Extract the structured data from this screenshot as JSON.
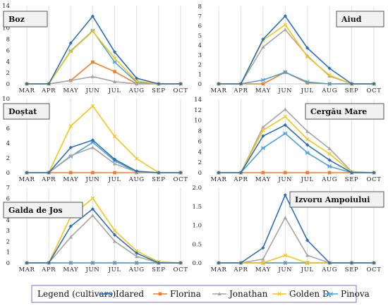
{
  "legend": {
    "title": "Legend (cultivars):",
    "items": [
      {
        "name": "Idared",
        "color": "#2e6fb5"
      },
      {
        "name": "Florina",
        "color": "#f07f2a"
      },
      {
        "name": "Jonathan",
        "color": "#a5a5a5"
      },
      {
        "name": "Golden D.",
        "color": "#f5c518"
      },
      {
        "name": "Pinova",
        "color": "#4aa3d6"
      }
    ]
  },
  "chart_data": [
    {
      "type": "line",
      "title": "Boz",
      "categories": [
        "MAR",
        "APR",
        "MAY",
        "JUN",
        "JUL",
        "AUG",
        "SEP",
        "OCT"
      ],
      "ylim": [
        0,
        14
      ],
      "yticks": [
        0,
        2,
        4,
        6,
        8,
        10,
        12,
        14
      ],
      "ytick_labels": [
        "0",
        "2",
        "4",
        "6",
        "8",
        "10",
        "12",
        "14"
      ],
      "series": [
        {
          "name": "Idared",
          "values": [
            0,
            0,
            7.3,
            12.1,
            5.7,
            1.0,
            0,
            0
          ]
        },
        {
          "name": "Florina",
          "values": [
            0,
            0,
            0.6,
            3.9,
            2.2,
            0,
            0,
            0
          ]
        },
        {
          "name": "Jonathan",
          "values": [
            0,
            0,
            0.6,
            1.3,
            0.4,
            0,
            0,
            0
          ]
        },
        {
          "name": "Golden D.",
          "values": [
            0,
            0,
            5.8,
            9.4,
            4.6,
            0.5,
            0,
            0
          ]
        },
        {
          "name": "Pinova",
          "values": [
            0,
            0,
            5.9,
            9.5,
            3.9,
            0.3,
            0,
            0
          ]
        }
      ]
    },
    {
      "type": "line",
      "title": "Aiud",
      "categories": [
        "MAR",
        "APR",
        "MAY",
        "JUN",
        "JUL",
        "AUG",
        "SEP",
        "OCT"
      ],
      "ylim": [
        0,
        8
      ],
      "yticks": [
        0,
        1,
        2,
        3,
        4,
        5,
        6,
        7,
        8
      ],
      "ytick_labels": [
        "0",
        "1",
        "2",
        "3",
        "4",
        "5",
        "6",
        "7",
        "8"
      ],
      "series": [
        {
          "name": "Idared",
          "values": [
            0,
            0,
            4.6,
            7.0,
            3.7,
            1.6,
            0,
            0
          ]
        },
        {
          "name": "Florina",
          "values": [
            0,
            0,
            0,
            1.2,
            0.1,
            0,
            0,
            0
          ]
        },
        {
          "name": "Jonathan",
          "values": [
            0,
            0,
            3.8,
            5.6,
            2.9,
            0.8,
            0,
            0
          ]
        },
        {
          "name": "Golden D.",
          "values": [
            0,
            0,
            4.5,
            6.1,
            2.8,
            0.9,
            0,
            0
          ]
        },
        {
          "name": "Pinova",
          "values": [
            0,
            0,
            0.4,
            1.2,
            0.2,
            0,
            0,
            0
          ]
        }
      ]
    },
    {
      "type": "line",
      "title": "Doștat",
      "categories": [
        "MAR",
        "APR",
        "MAY",
        "JUN",
        "JUL",
        "AUG",
        "SEP",
        "OCT"
      ],
      "ylim": [
        0,
        10
      ],
      "yticks": [
        0,
        2,
        4,
        6,
        8,
        10
      ],
      "ytick_labels": [
        "0",
        "2",
        "4",
        "6",
        "8",
        "10"
      ],
      "series": [
        {
          "name": "Idared",
          "values": [
            0,
            0,
            3.4,
            4.4,
            1.8,
            0.2,
            0,
            0
          ]
        },
        {
          "name": "Florina",
          "values": [
            0,
            0,
            0,
            0,
            0,
            0,
            0,
            0
          ]
        },
        {
          "name": "Jonathan",
          "values": [
            0,
            0,
            2.3,
            3.4,
            1.2,
            0.1,
            0,
            0
          ]
        },
        {
          "name": "Golden D.",
          "values": [
            0,
            0,
            6.3,
            9.0,
            4.9,
            1.9,
            0,
            0
          ]
        },
        {
          "name": "Pinova",
          "values": [
            0,
            0,
            2.2,
            4.1,
            1.6,
            0.1,
            0,
            0
          ]
        }
      ]
    },
    {
      "type": "line",
      "title": "Cergău Mare",
      "categories": [
        "MAR",
        "APR",
        "MAY",
        "JUN",
        "JUL",
        "AUG",
        "SEP",
        "OCT"
      ],
      "ylim": [
        0,
        14
      ],
      "yticks": [
        0,
        2,
        4,
        6,
        8,
        10,
        12,
        14
      ],
      "ytick_labels": [
        "0",
        "2",
        "4",
        "6",
        "8",
        "10",
        "12",
        "14"
      ],
      "series": [
        {
          "name": "Idared",
          "values": [
            0,
            0,
            7.0,
            9.1,
            5.3,
            2.4,
            0,
            0
          ]
        },
        {
          "name": "Florina",
          "values": [
            0,
            0,
            0,
            0,
            0,
            0,
            0,
            0
          ]
        },
        {
          "name": "Jonathan",
          "values": [
            0,
            0,
            8.7,
            12.1,
            7.9,
            4.6,
            0.2,
            0
          ]
        },
        {
          "name": "Golden D.",
          "values": [
            0,
            0,
            8.1,
            10.7,
            6.4,
            3.6,
            0.1,
            0
          ]
        },
        {
          "name": "Pinova",
          "values": [
            0,
            0,
            4.7,
            7.5,
            3.8,
            1.2,
            0,
            0
          ]
        }
      ]
    },
    {
      "type": "line",
      "title": "Galda de Jos",
      "categories": [
        "MAR",
        "APR",
        "MAY",
        "JUN",
        "JUL",
        "AUG",
        "SEP",
        "OCT"
      ],
      "ylim": [
        0,
        7
      ],
      "yticks": [
        0,
        1,
        2,
        3,
        4,
        5,
        6,
        7
      ],
      "ytick_labels": [
        "0",
        "1",
        "2",
        "3",
        "4",
        "5",
        "6",
        "7"
      ],
      "series": [
        {
          "name": "Idared",
          "values": [
            0,
            0,
            3.4,
            5.0,
            2.6,
            0.9,
            0,
            0
          ]
        },
        {
          "name": "Florina",
          "values": [
            0,
            0,
            0,
            0,
            0,
            0,
            0,
            0
          ]
        },
        {
          "name": "Jonathan",
          "values": [
            0,
            0,
            2.4,
            4.4,
            2.0,
            0.6,
            0,
            0
          ]
        },
        {
          "name": "Golden D.",
          "values": [
            0,
            0,
            4.3,
            6.0,
            3.0,
            1.1,
            0.1,
            0
          ]
        },
        {
          "name": "Pinova",
          "values": [
            0,
            0,
            0,
            0,
            0,
            0,
            0,
            0
          ]
        }
      ]
    },
    {
      "type": "line",
      "title": "Izvoru Ampoiului",
      "categories": [
        "MAR",
        "APR",
        "MAY",
        "JUN",
        "JUL",
        "AUG",
        "SEP",
        "OCT"
      ],
      "ylim": [
        0,
        2.0
      ],
      "yticks": [
        0,
        0.5,
        1.0,
        1.5,
        2.0
      ],
      "ytick_labels": [
        "0.0",
        "0.5",
        "1.0",
        "1.5",
        "2.0"
      ],
      "series": [
        {
          "name": "Idared",
          "values": [
            0,
            0,
            0.4,
            1.8,
            0.6,
            0,
            0,
            0
          ]
        },
        {
          "name": "Florina",
          "values": [
            0,
            0,
            0,
            0,
            0,
            0,
            0,
            0
          ]
        },
        {
          "name": "Jonathan",
          "values": [
            0,
            0,
            0.1,
            1.2,
            0.2,
            0,
            0,
            0
          ]
        },
        {
          "name": "Golden D.",
          "values": [
            0,
            0,
            0,
            0.2,
            0,
            0,
            0,
            0
          ]
        },
        {
          "name": "Pinova",
          "values": [
            0,
            0,
            0,
            0,
            0,
            0,
            0,
            0
          ]
        }
      ]
    }
  ]
}
